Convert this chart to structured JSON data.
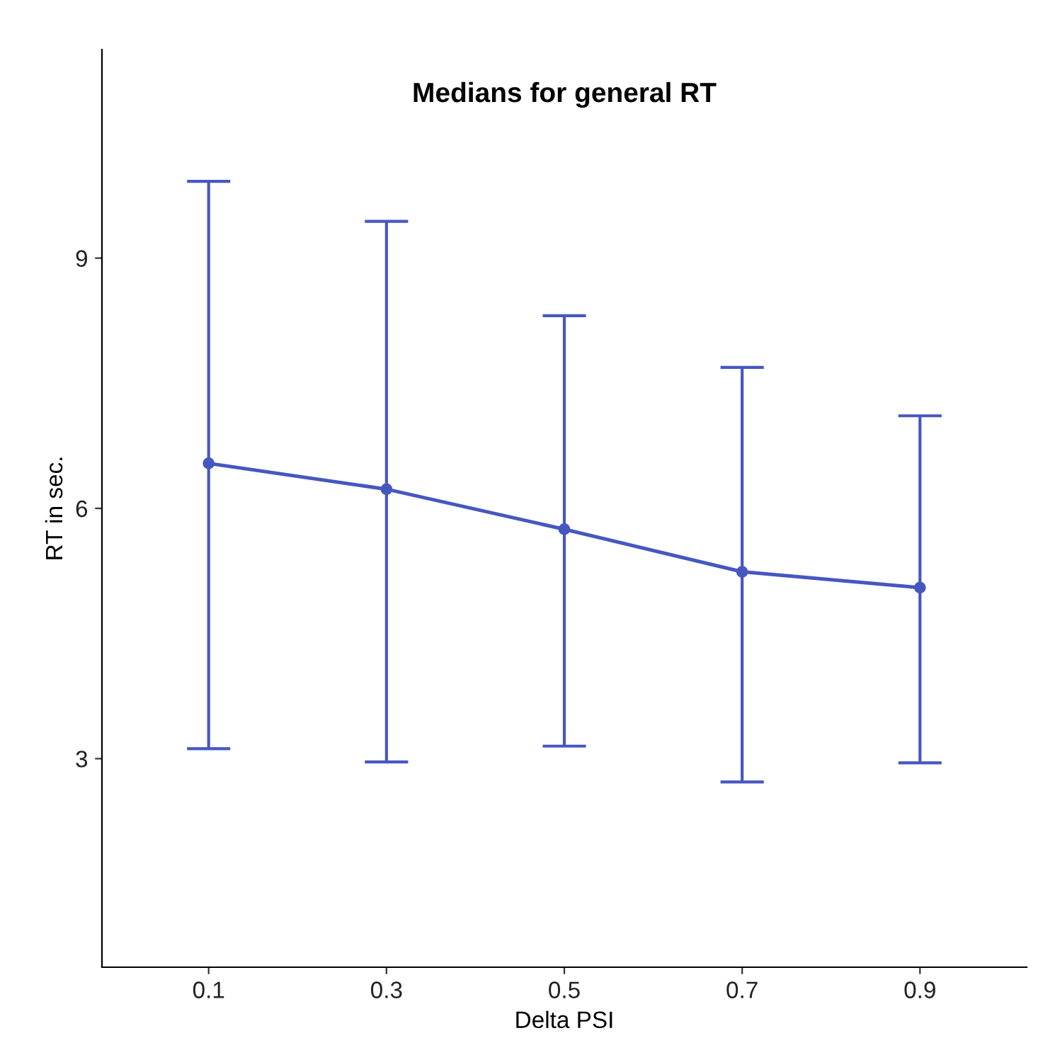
{
  "chart_data": {
    "type": "line",
    "title": "Medians for general RT",
    "xlabel": "Delta PSI",
    "ylabel": "RT in sec.",
    "categories": [
      "0.1",
      "0.3",
      "0.5",
      "0.7",
      "0.9"
    ],
    "series": [
      {
        "color": "#4657c0",
        "values": [
          6.54,
          6.23,
          5.75,
          5.24,
          5.05
        ],
        "errors": [
          [
            3.12,
            9.92
          ],
          [
            2.96,
            9.44
          ],
          [
            3.15,
            8.31
          ],
          [
            2.72,
            7.69
          ],
          [
            2.95,
            7.11
          ]
        ]
      }
    ],
    "ylim": [
      0.5,
      11.5
    ],
    "yticks": [
      3,
      6,
      9
    ],
    "marker": "circle",
    "line_style": "solid"
  }
}
